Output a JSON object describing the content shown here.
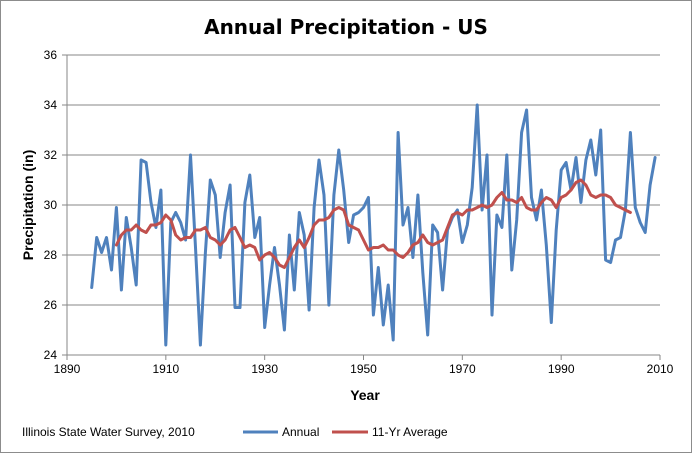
{
  "chart_data": {
    "type": "line",
    "title": "Annual Precipitation - US",
    "xlabel": "Year",
    "ylabel": "Precipitation (in)",
    "xlim": [
      1890,
      2010
    ],
    "ylim": [
      24,
      36
    ],
    "x_ticks": [
      1890,
      1910,
      1930,
      1950,
      1970,
      1990,
      2010
    ],
    "y_ticks": [
      24,
      26,
      28,
      30,
      32,
      34,
      36
    ],
    "grid": "horizontal",
    "legend": "bottom",
    "series": [
      {
        "name": "Annual",
        "color": "#4f81bd",
        "x": [
          1895,
          1896,
          1897,
          1898,
          1899,
          1900,
          1901,
          1902,
          1903,
          1904,
          1905,
          1906,
          1907,
          1908,
          1909,
          1910,
          1911,
          1912,
          1913,
          1914,
          1915,
          1916,
          1917,
          1918,
          1919,
          1920,
          1921,
          1922,
          1923,
          1924,
          1925,
          1926,
          1927,
          1928,
          1929,
          1930,
          1931,
          1932,
          1933,
          1934,
          1935,
          1936,
          1937,
          1938,
          1939,
          1940,
          1941,
          1942,
          1943,
          1944,
          1945,
          1946,
          1947,
          1948,
          1949,
          1950,
          1951,
          1952,
          1953,
          1954,
          1955,
          1956,
          1957,
          1958,
          1959,
          1960,
          1961,
          1962,
          1963,
          1964,
          1965,
          1966,
          1967,
          1968,
          1969,
          1970,
          1971,
          1972,
          1973,
          1974,
          1975,
          1976,
          1977,
          1978,
          1979,
          1980,
          1981,
          1982,
          1983,
          1984,
          1985,
          1986,
          1987,
          1988,
          1989,
          1990,
          1991,
          1992,
          1993,
          1994,
          1995,
          1996,
          1997,
          1998,
          1999,
          2000,
          2001,
          2002,
          2003,
          2004,
          2005,
          2006,
          2007,
          2008,
          2009
        ],
        "values": [
          26.7,
          28.7,
          28.1,
          28.7,
          27.4,
          29.9,
          26.6,
          29.5,
          28.3,
          26.8,
          31.8,
          31.7,
          30.1,
          29.1,
          30.6,
          24.4,
          29.3,
          29.7,
          29.3,
          28.6,
          32.0,
          28.3,
          24.4,
          28.1,
          31.0,
          30.4,
          27.9,
          29.7,
          30.8,
          25.9,
          25.9,
          30.1,
          31.2,
          28.7,
          29.5,
          25.1,
          26.8,
          28.3,
          26.8,
          25.0,
          28.8,
          26.6,
          29.7,
          28.8,
          25.8,
          29.9,
          31.8,
          30.4,
          26.0,
          30.4,
          32.2,
          30.6,
          28.5,
          29.6,
          29.7,
          29.9,
          30.3,
          25.6,
          27.5,
          25.2,
          26.8,
          24.6,
          32.9,
          29.2,
          29.9,
          27.9,
          30.4,
          27.3,
          24.8,
          29.2,
          28.9,
          26.6,
          29.0,
          29.5,
          29.8,
          28.5,
          29.2,
          30.7,
          34.0,
          29.8,
          32.0,
          25.6,
          29.6,
          29.1,
          32.0,
          27.4,
          29.4,
          32.9,
          33.8,
          30.3,
          29.4,
          30.6,
          28.4,
          25.3,
          29.0,
          31.4,
          31.7,
          30.6,
          31.9,
          30.1,
          31.8,
          32.6,
          31.2,
          33.0,
          27.8,
          27.7,
          28.6,
          28.7,
          29.8,
          32.9,
          29.9,
          29.3,
          28.9,
          30.8,
          31.9
        ]
      },
      {
        "name": "11-Yr Average",
        "color": "#c0504d",
        "x": [
          1900,
          1901,
          1902,
          1903,
          1904,
          1905,
          1906,
          1907,
          1908,
          1909,
          1910,
          1911,
          1912,
          1913,
          1914,
          1915,
          1916,
          1917,
          1918,
          1919,
          1920,
          1921,
          1922,
          1923,
          1924,
          1925,
          1926,
          1927,
          1928,
          1929,
          1930,
          1931,
          1932,
          1933,
          1934,
          1935,
          1936,
          1937,
          1938,
          1939,
          1940,
          1941,
          1942,
          1943,
          1944,
          1945,
          1946,
          1947,
          1948,
          1949,
          1950,
          1951,
          1952,
          1953,
          1954,
          1955,
          1956,
          1957,
          1958,
          1959,
          1960,
          1961,
          1962,
          1963,
          1964,
          1965,
          1966,
          1967,
          1968,
          1969,
          1970,
          1971,
          1972,
          1973,
          1974,
          1975,
          1976,
          1977,
          1978,
          1979,
          1980,
          1981,
          1982,
          1983,
          1984,
          1985,
          1986,
          1987,
          1988,
          1989,
          1990,
          1991,
          1992,
          1993,
          1994,
          1995,
          1996,
          1997,
          1998,
          1999,
          2000,
          2001,
          2002,
          2003,
          2004
        ],
        "values": [
          28.4,
          28.8,
          29.0,
          29.0,
          29.2,
          29.0,
          28.9,
          29.2,
          29.2,
          29.3,
          29.6,
          29.4,
          28.8,
          28.6,
          28.7,
          28.7,
          29.0,
          29.0,
          29.1,
          28.7,
          28.6,
          28.4,
          28.6,
          29.0,
          29.1,
          28.7,
          28.3,
          28.4,
          28.3,
          27.8,
          28.0,
          28.1,
          27.9,
          27.6,
          27.5,
          27.9,
          28.3,
          28.6,
          28.3,
          28.7,
          29.2,
          29.4,
          29.4,
          29.5,
          29.8,
          29.9,
          29.8,
          29.2,
          29.1,
          29.0,
          28.6,
          28.2,
          28.3,
          28.3,
          28.4,
          28.2,
          28.2,
          28.0,
          27.9,
          28.1,
          28.4,
          28.5,
          28.8,
          28.5,
          28.4,
          28.5,
          28.6,
          29.1,
          29.6,
          29.7,
          29.6,
          29.8,
          29.8,
          29.9,
          30.0,
          29.9,
          30.0,
          30.3,
          30.5,
          30.2,
          30.2,
          30.1,
          30.3,
          29.9,
          29.8,
          29.8,
          30.1,
          30.3,
          30.2,
          29.9,
          30.3,
          30.4,
          30.6,
          30.9,
          31.0,
          30.8,
          30.4,
          30.3,
          30.4,
          30.4,
          30.3,
          30.0,
          29.9,
          29.8,
          29.7
        ]
      }
    ]
  },
  "credit": "Illinois State Water Survey, 2010"
}
